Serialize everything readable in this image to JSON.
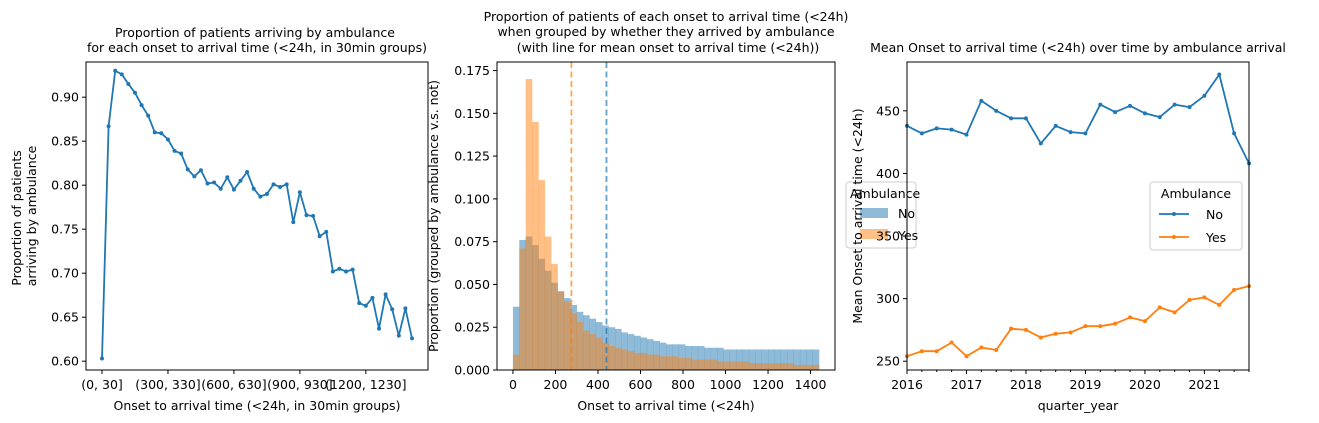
{
  "chart_data": [
    {
      "type": "line",
      "title": "Proportion of patients arriving by ambulance\nfor each onset to arrival time (<24h, in 30min groups)",
      "xlabel": "Onset to arrival time (<24h, in 30min groups)",
      "ylabel": "Proportion of patients\narriving by ambulance",
      "x_tick_labels": [
        "(0, 30]",
        "(300, 330]",
        "(600, 630]",
        "(900, 930]",
        "(1200, 1230]"
      ],
      "ylim": [
        0.59,
        0.94
      ],
      "y_ticks": [
        0.6,
        0.65,
        0.7,
        0.75,
        0.8,
        0.85,
        0.9
      ],
      "grid": false,
      "color": "#1f77b4",
      "series": [
        {
          "values": [
            0.603,
            0.867,
            0.93,
            0.926,
            0.915,
            0.905,
            0.891,
            0.879,
            0.86,
            0.859,
            0.852,
            0.839,
            0.836,
            0.818,
            0.81,
            0.817,
            0.802,
            0.803,
            0.796,
            0.809,
            0.795,
            0.805,
            0.815,
            0.796,
            0.787,
            0.79,
            0.801,
            0.798,
            0.801,
            0.758,
            0.792,
            0.766,
            0.765,
            0.742,
            0.747,
            0.702,
            0.705,
            0.702,
            0.704,
            0.666,
            0.663,
            0.672,
            0.637,
            0.676,
            0.659,
            0.629,
            0.66,
            0.626
          ]
        }
      ]
    },
    {
      "type": "histogram",
      "title": "Proportion of patients of each onset to arrival time (<24h)\nwhen grouped by whether they arrived by ambulance\n(with line for mean onset to arrival time (<24h))",
      "xlabel": "Onset to arrival time (<24h)",
      "ylabel": "Proportion (grouped by ambulance v.s. not)",
      "xlim": [
        -75,
        1515
      ],
      "ylim": [
        0,
        0.18
      ],
      "x_ticks": [
        0,
        200,
        400,
        600,
        800,
        1000,
        1200,
        1400
      ],
      "y_ticks": [
        0.0,
        0.025,
        0.05,
        0.075,
        0.1,
        0.125,
        0.15,
        0.175
      ],
      "y_tick_labels": [
        "0.000",
        "0.025",
        "0.050",
        "0.075",
        "0.100",
        "0.125",
        "0.150",
        "0.175"
      ],
      "bin_start": 0,
      "bin_width": 30,
      "legend": {
        "title": "Ambulance",
        "entries": [
          "No",
          "Yes"
        ],
        "placement": "right"
      },
      "series": [
        {
          "name": "No",
          "color": "#1f77b4",
          "mean": 440,
          "values": [
            0.037,
            0.076,
            0.078,
            0.073,
            0.065,
            0.058,
            0.051,
            0.046,
            0.042,
            0.038,
            0.034,
            0.032,
            0.03,
            0.028,
            0.026,
            0.025,
            0.024,
            0.022,
            0.021,
            0.02,
            0.019,
            0.018,
            0.017,
            0.016,
            0.015,
            0.015,
            0.015,
            0.014,
            0.014,
            0.014,
            0.013,
            0.013,
            0.013,
            0.012,
            0.012,
            0.012,
            0.012,
            0.012,
            0.012,
            0.012,
            0.012,
            0.012,
            0.012,
            0.012,
            0.012,
            0.012,
            0.012,
            0.012
          ]
        },
        {
          "name": "Yes",
          "color": "#ff7f0e",
          "mean": 275,
          "values": [
            0.009,
            0.071,
            0.17,
            0.145,
            0.111,
            0.078,
            0.062,
            0.046,
            0.04,
            0.033,
            0.028,
            0.023,
            0.021,
            0.019,
            0.016,
            0.014,
            0.013,
            0.012,
            0.011,
            0.01,
            0.01,
            0.009,
            0.009,
            0.008,
            0.008,
            0.008,
            0.007,
            0.007,
            0.006,
            0.006,
            0.006,
            0.006,
            0.005,
            0.005,
            0.005,
            0.005,
            0.005,
            0.004,
            0.004,
            0.004,
            0.004,
            0.004,
            0.004,
            0.004,
            0.003,
            0.003,
            0.003,
            0.003
          ]
        }
      ]
    },
    {
      "type": "line",
      "title": "Mean Onset to arrival time (<24h) over time by ambulance arrival",
      "xlabel": "quarter_year",
      "ylabel": "Mean Onset to arrival time (<24h)",
      "xlim": [
        2016.0,
        2021.75
      ],
      "ylim": [
        243,
        489
      ],
      "x_ticks": [
        2016,
        2017,
        2018,
        2019,
        2020,
        2021
      ],
      "y_ticks": [
        250,
        300,
        350,
        400,
        450
      ],
      "grid": false,
      "legend": {
        "title": "Ambulance",
        "entries": [
          "No",
          "Yes"
        ],
        "placement": "center-right"
      },
      "x": [
        2016.0,
        2016.25,
        2016.5,
        2016.75,
        2017.0,
        2017.25,
        2017.5,
        2017.75,
        2018.0,
        2018.25,
        2018.5,
        2018.75,
        2019.0,
        2019.25,
        2019.5,
        2019.75,
        2020.0,
        2020.25,
        2020.5,
        2020.75,
        2021.0,
        2021.25,
        2021.5,
        2021.75
      ],
      "series": [
        {
          "name": "No",
          "color": "#1f77b4",
          "values": [
            438,
            432,
            436,
            435,
            431,
            458,
            450,
            444,
            444,
            424,
            438,
            433,
            432,
            455,
            449,
            454,
            448,
            445,
            455,
            453,
            462,
            479,
            432,
            408
          ]
        },
        {
          "name": "Yes",
          "color": "#ff7f0e",
          "values": [
            254,
            258,
            258,
            265,
            254,
            261,
            259,
            276,
            275,
            269,
            272,
            273,
            278,
            278,
            280,
            285,
            282,
            293,
            289,
            299,
            301,
            295,
            307,
            310
          ]
        }
      ]
    }
  ]
}
